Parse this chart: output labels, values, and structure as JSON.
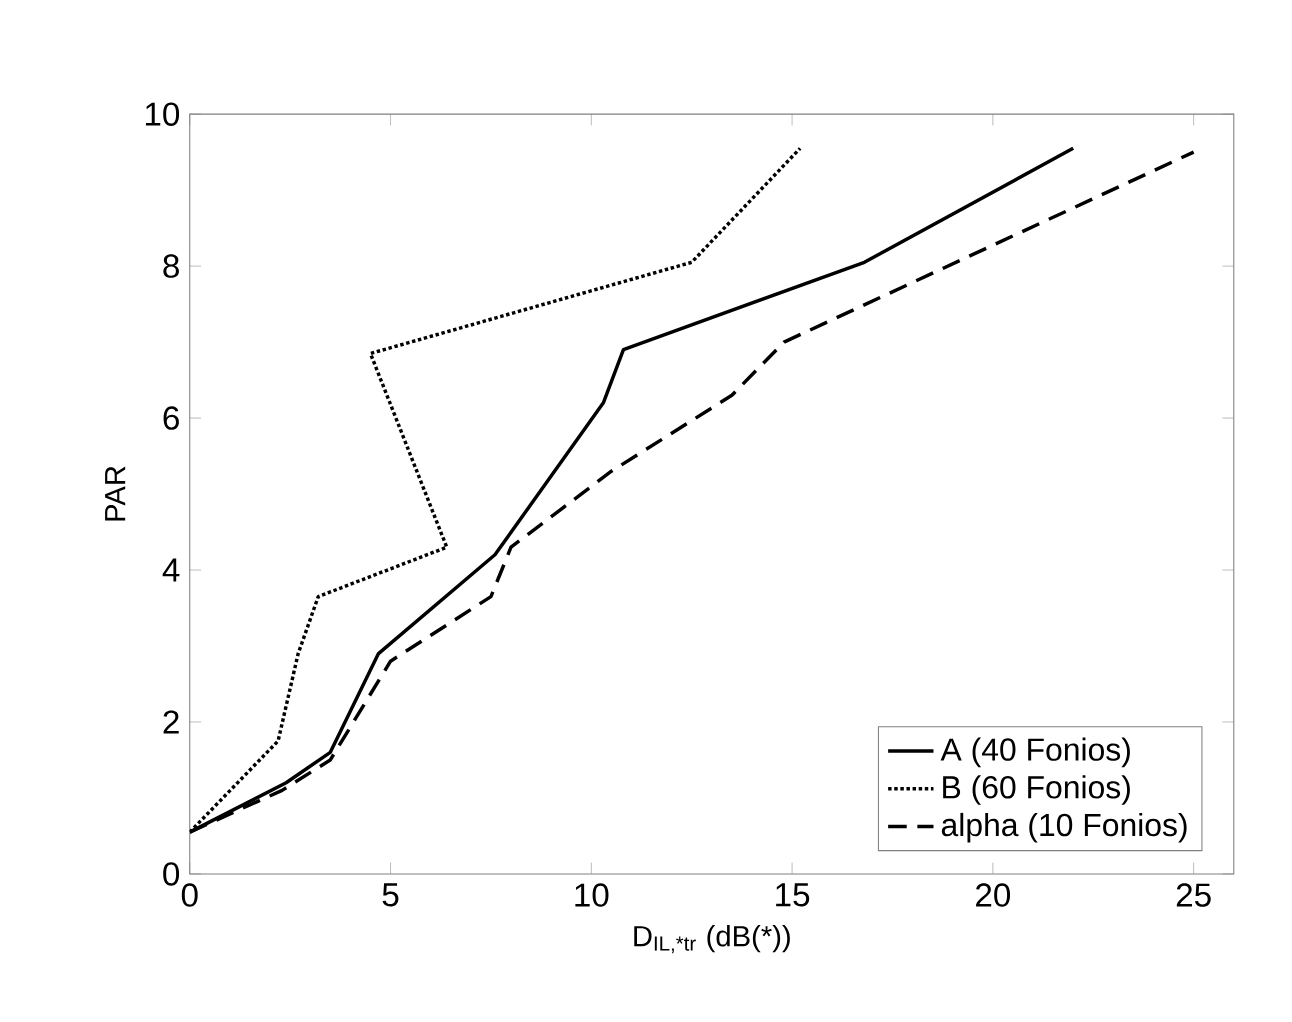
{
  "chart_data": {
    "type": "line",
    "xlabel": "D$_{IL,*tr}$ (dB(*))",
    "ylabel": "PAR",
    "xlim": [
      0,
      26
    ],
    "ylim": [
      0,
      10
    ],
    "xticks": [
      0,
      5,
      10,
      15,
      20,
      25
    ],
    "yticks": [
      0,
      2,
      4,
      6,
      8,
      10
    ],
    "legend": "bottom right",
    "grid": false,
    "series": [
      {
        "name": "A (40 Fonios)",
        "color": "#000000",
        "line_style": "solid",
        "x": [
          0,
          2.4,
          3.5,
          4.7,
          7.6,
          10.3,
          10.8,
          16.8,
          22
        ],
        "values": [
          0.55,
          1.2,
          1.6,
          2.9,
          4.2,
          6.2,
          6.9,
          8.05,
          9.55
        ]
      },
      {
        "name": "B (60 Fonios)",
        "color": "#000000",
        "line_style": "dotted",
        "x": [
          0,
          2.2,
          2.7,
          3.2,
          6.4,
          4.5,
          12.5,
          15.2
        ],
        "values": [
          0.55,
          1.75,
          2.9,
          3.65,
          4.3,
          6.85,
          8.05,
          9.55
        ]
      },
      {
        "name": "alpha (10 Fonios)",
        "color": "#000000",
        "line_style": "dashed",
        "x": [
          0,
          2.3,
          3.5,
          5,
          7.5,
          8,
          10.5,
          13.5,
          14.8,
          25
        ],
        "values": [
          0.55,
          1.1,
          1.5,
          2.8,
          3.65,
          4.3,
          5.3,
          6.3,
          7.0,
          9.5
        ]
      }
    ]
  }
}
